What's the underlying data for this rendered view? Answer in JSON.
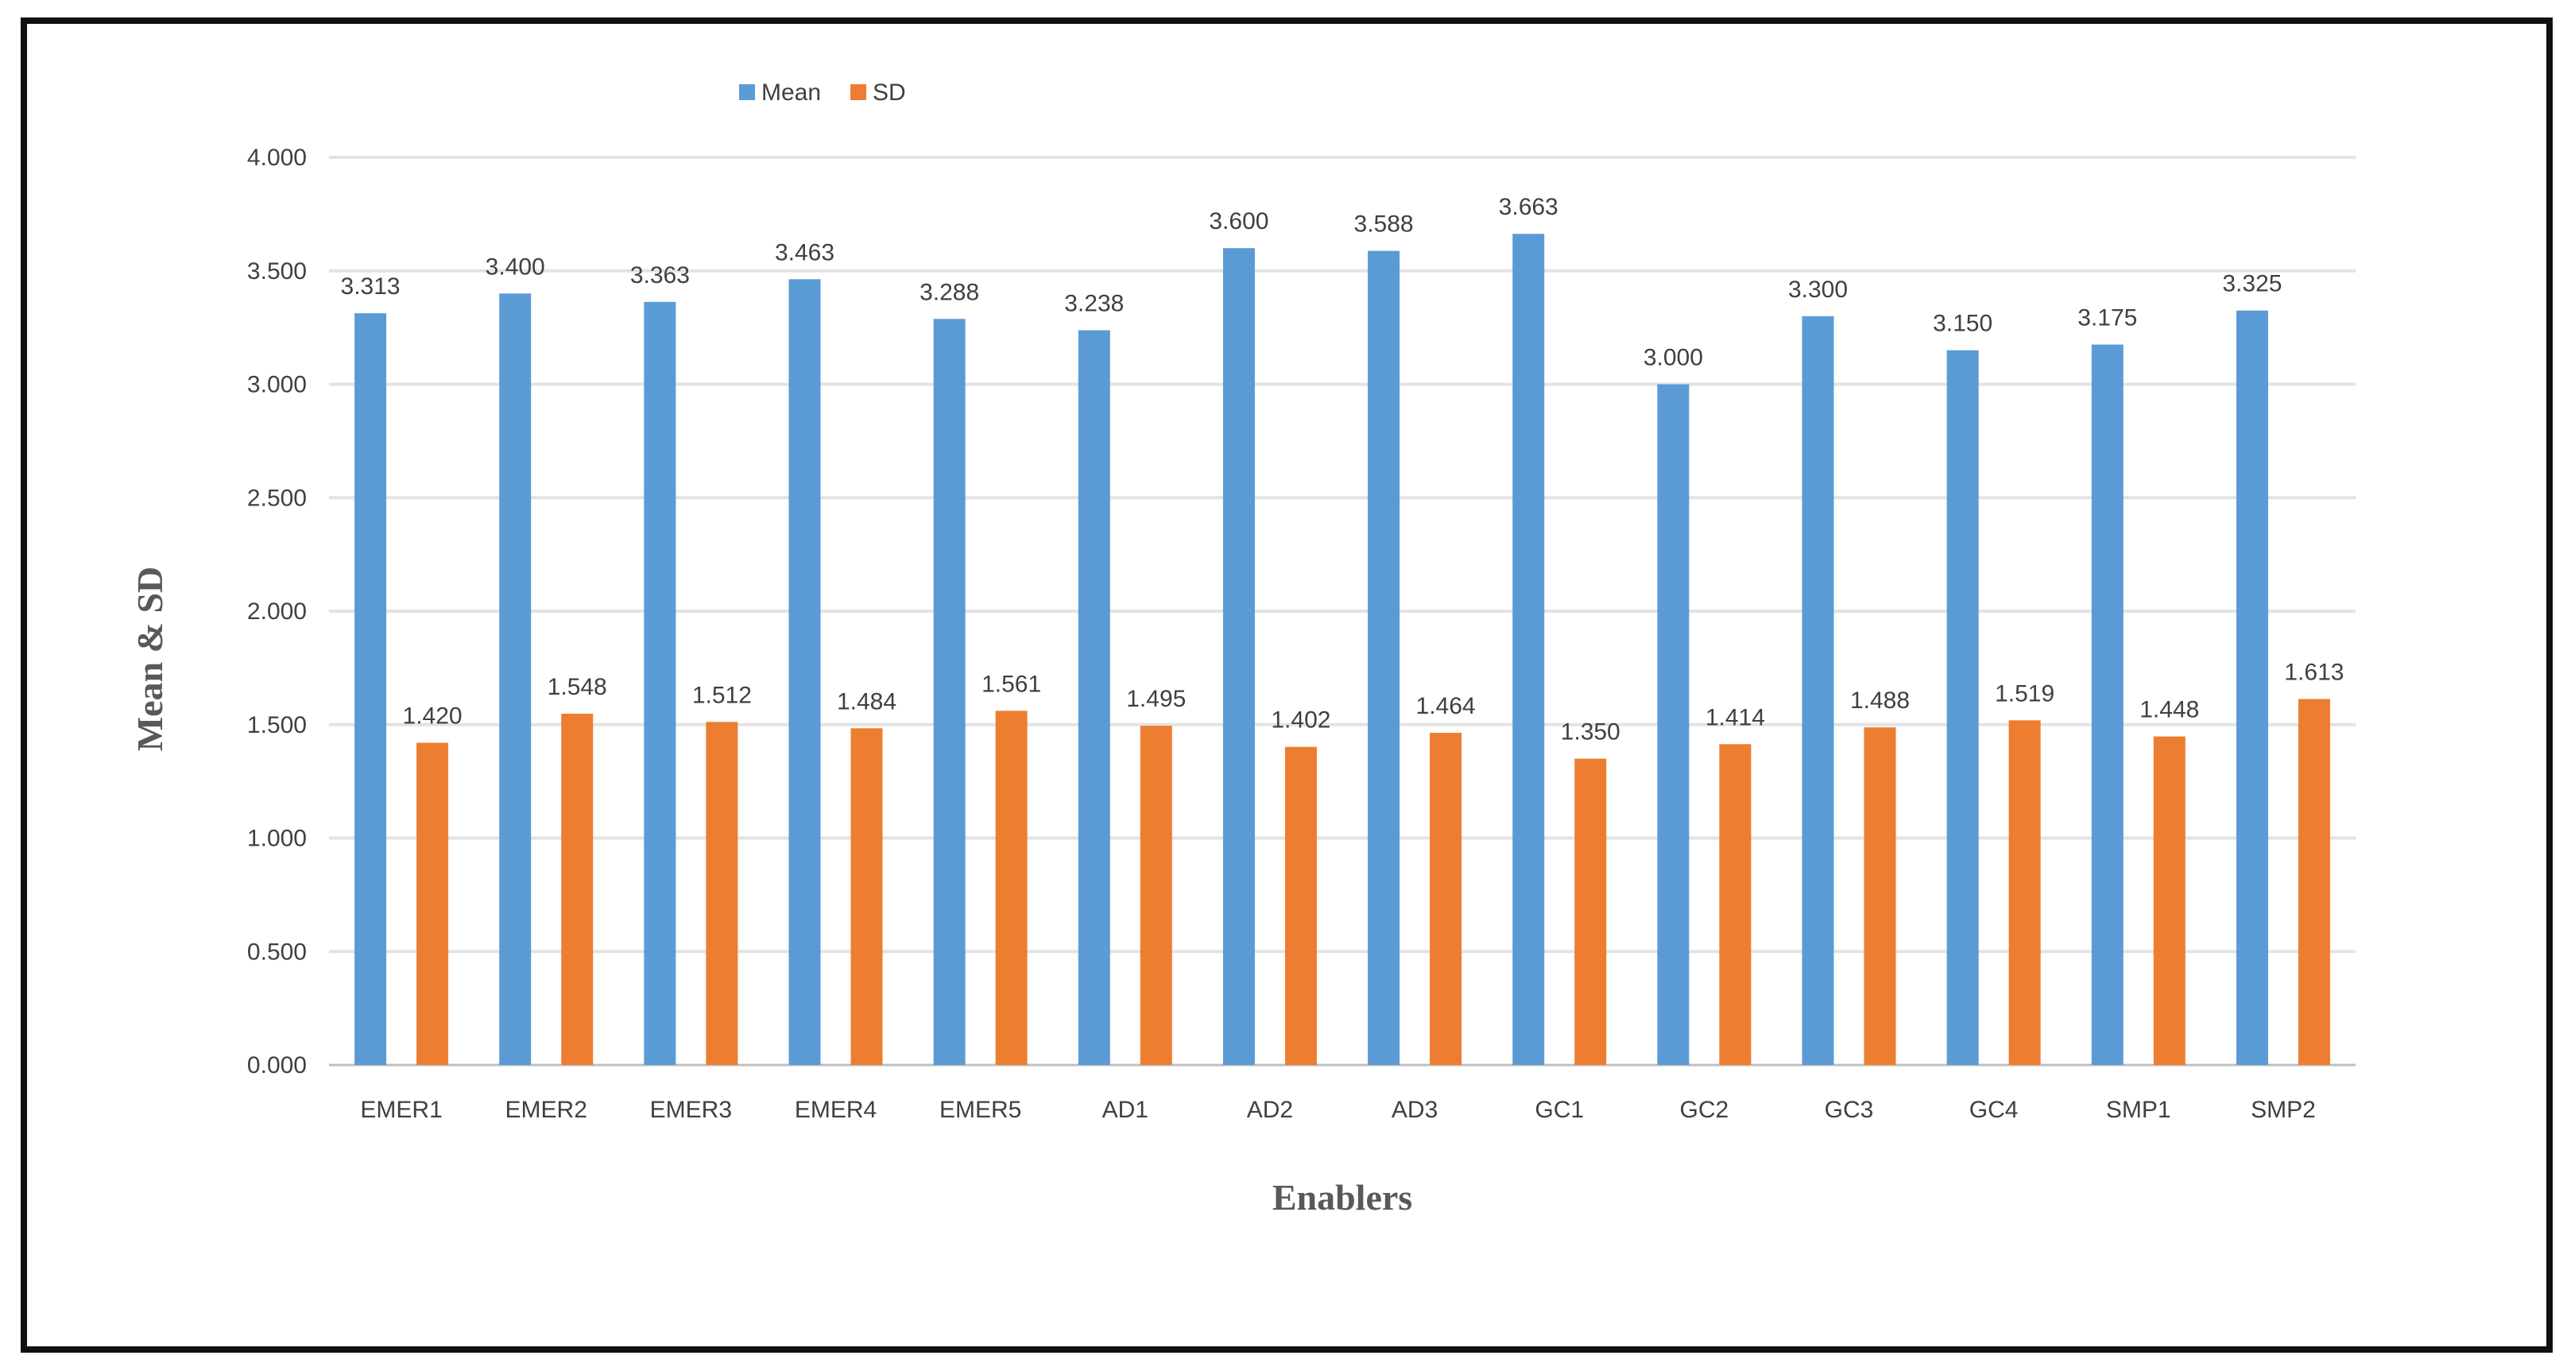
{
  "chart_data": {
    "type": "bar",
    "title": "",
    "xlabel": "Enablers",
    "ylabel": "Mean & SD",
    "ylim": [
      0,
      4
    ],
    "ytick_step": 0.5,
    "ytick_labels": [
      "0.000",
      "0.500",
      "1.000",
      "1.500",
      "2.000",
      "2.500",
      "3.000",
      "3.500",
      "4.000"
    ],
    "grid": "horizontal",
    "legend_position": "top",
    "categories": [
      "EMER1",
      "EMER2",
      "EMER3",
      "EMER4",
      "EMER5",
      "AD1",
      "AD2",
      "AD3",
      "GC1",
      "GC2",
      "GC3",
      "GC4",
      "SMP1",
      "SMP2"
    ],
    "series": [
      {
        "name": "Mean",
        "color": "#5B9BD5",
        "values": [
          3.313,
          3.4,
          3.363,
          3.463,
          3.288,
          3.238,
          3.6,
          3.588,
          3.663,
          3.0,
          3.3,
          3.15,
          3.175,
          3.325
        ],
        "labels": [
          "3.313",
          "3.400",
          "3.363",
          "3.463",
          "3.288",
          "3.238",
          "3.600",
          "3.588",
          "3.663",
          "3.000",
          "3.300",
          "3.150",
          "3.175",
          "3.325"
        ]
      },
      {
        "name": "SD",
        "color": "#ED7D31",
        "values": [
          1.42,
          1.548,
          1.512,
          1.484,
          1.561,
          1.495,
          1.402,
          1.464,
          1.35,
          1.414,
          1.488,
          1.519,
          1.448,
          1.613
        ],
        "labels": [
          "1.420",
          "1.548",
          "1.512",
          "1.484",
          "1.561",
          "1.495",
          "1.402",
          "1.464",
          "1.350",
          "1.414",
          "1.488",
          "1.519",
          "1.448",
          "1.613"
        ]
      }
    ]
  }
}
